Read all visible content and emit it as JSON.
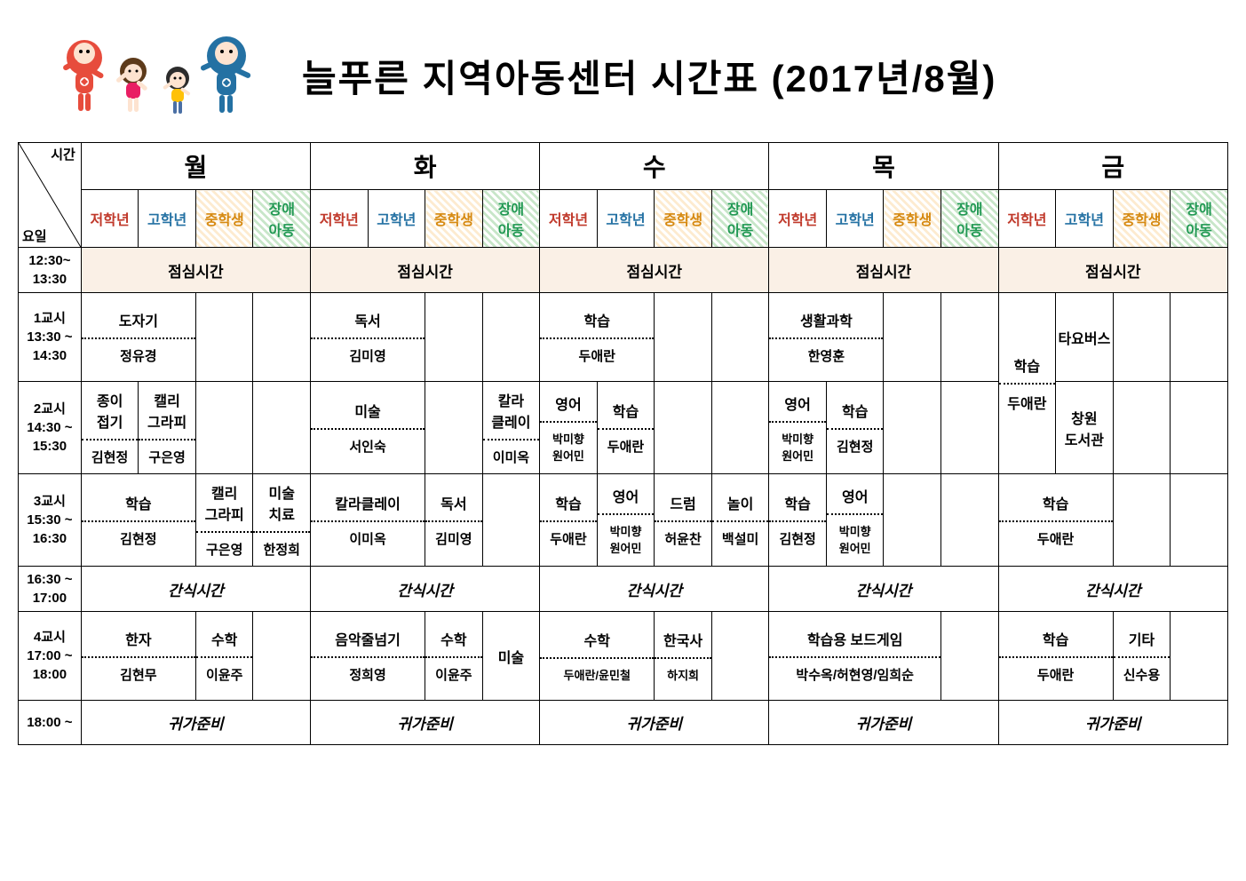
{
  "title": "늘푸른 지역아동센터 시간표 (2017년/8월)",
  "axes": {
    "time": "시간",
    "day": "요일"
  },
  "days": [
    "월",
    "화",
    "수",
    "목",
    "금"
  ],
  "cats": {
    "ju": "저학년",
    "go": "고학년",
    "jung": "중학생",
    "jang": "장애\n아동"
  },
  "colors": {
    "ju": "#c0392b",
    "go": "#2471a3",
    "jung": "#d68910",
    "jang": "#229954",
    "lunch_bg": "#faf0e6"
  },
  "times": {
    "lunch": "12:30~\n13:30",
    "p1": "1교시\n13:30 ~\n14:30",
    "p2": "2교시\n14:30 ~\n15:30",
    "p3": "3교시\n15:30 ~\n16:30",
    "snack": "16:30 ~\n17:00",
    "p4": "4교시\n17:00 ~\n18:00",
    "prep": "18:00 ~"
  },
  "labels": {
    "lunch": "점심시간",
    "snack": "간식시간",
    "prep": "귀가준비"
  },
  "p1": {
    "mon": {
      "subj": "도자기",
      "teach": "정유경"
    },
    "tue": {
      "subj": "독서",
      "teach": "김미영"
    },
    "wed": {
      "subj": "학습",
      "teach": "두애란"
    },
    "thu": {
      "subj": "생활과학",
      "teach": "한영훈"
    },
    "fri_ju": "학습",
    "fri_go": "타요버스"
  },
  "p2": {
    "mon_ju": {
      "subj": "종이\n접기",
      "teach": "김현정"
    },
    "mon_go": {
      "subj": "캘리\n그라피",
      "teach": "구은영"
    },
    "tue": {
      "subj": "미술",
      "teach": "서인숙"
    },
    "tue_jang": {
      "subj": "칼라\n클레이",
      "teach": "이미옥"
    },
    "wed_ju": {
      "subj": "영어",
      "teach": "박미향\n원어민"
    },
    "wed_go": {
      "subj": "학습",
      "teach": "두애란"
    },
    "thu_ju": {
      "subj": "영어",
      "teach": "박미향\n원어민"
    },
    "thu_go": {
      "subj": "학습",
      "teach": "김현정"
    },
    "fri_ju": "두애란",
    "fri_go": "창원\n도서관"
  },
  "p3": {
    "mon": {
      "subj": "학습",
      "teach": "김현정"
    },
    "mon_jung": {
      "subj": "캘리\n그라피",
      "teach": "구은영"
    },
    "mon_jang": {
      "subj": "미술\n치료",
      "teach": "한정희"
    },
    "tue": {
      "subj": "칼라클레이",
      "teach": "이미옥"
    },
    "tue_jung": {
      "subj": "독서",
      "teach": "김미영"
    },
    "wed_ju": {
      "subj": "학습",
      "teach": "두애란"
    },
    "wed_go": {
      "subj": "영어",
      "teach": "박미향\n원어민"
    },
    "wed_jung": {
      "subj": "드럼",
      "teach": "허윤찬"
    },
    "wed_jang": {
      "subj": "놀이",
      "teach": "백설미"
    },
    "thu_ju": {
      "subj": "학습",
      "teach": "김현정"
    },
    "thu_go": {
      "subj": "영어",
      "teach": "박미향\n원어민"
    },
    "fri": {
      "subj": "학습",
      "teach": "두애란"
    }
  },
  "p4": {
    "mon": {
      "subj": "한자",
      "teach": "김현무"
    },
    "mon_jung": {
      "subj": "수학",
      "teach": "이윤주"
    },
    "tue": {
      "subj": "음악줄넘기",
      "teach": "정희영"
    },
    "tue_jung": {
      "subj": "수학",
      "teach": "이윤주"
    },
    "tue_jang": "미술",
    "wed": {
      "subj": "수학",
      "teach": "두애란/윤민철"
    },
    "wed_jung": {
      "subj": "한국사",
      "teach": "하지희"
    },
    "thu": {
      "subj": "학습용 보드게임",
      "teach": "박수옥/허현영/임희순"
    },
    "fri": {
      "subj": "학습",
      "teach": "두애란"
    },
    "fri_jung": {
      "subj": "기타",
      "teach": "신수용"
    }
  }
}
